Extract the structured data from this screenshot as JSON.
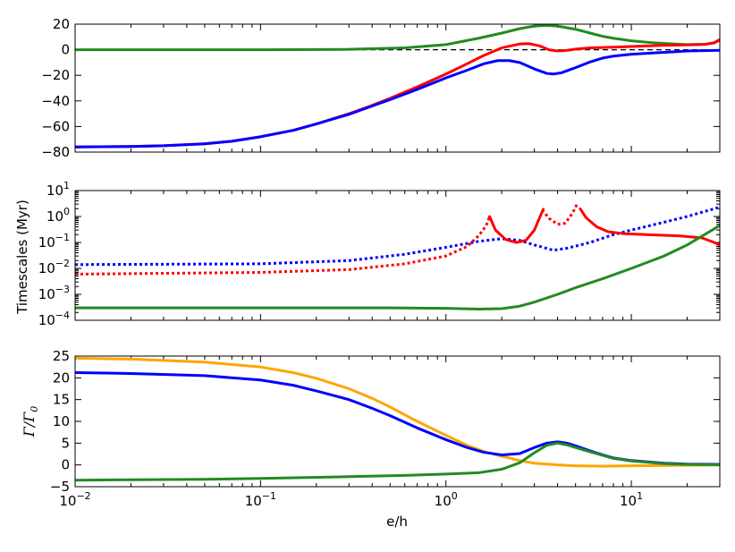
{
  "chart_data": [
    {
      "type": "line",
      "title": "",
      "xlabel": "",
      "ylabel": "",
      "xscale": "log",
      "xlim": [
        0.01,
        30
      ],
      "ylim": [
        -80,
        20
      ],
      "yticks": [
        20,
        0,
        -20,
        -40,
        -60,
        -80
      ],
      "ytick_labels": [
        "20",
        "0",
        "−20",
        "−40",
        "−60",
        "−80"
      ],
      "grid": false,
      "hline": {
        "y": 0,
        "style": "dashed",
        "color": "#000000"
      },
      "series": [
        {
          "color": "#228b22",
          "style": "solid",
          "points": [
            [
              0.01,
              0
            ],
            [
              0.1,
              0
            ],
            [
              0.3,
              0.3
            ],
            [
              0.6,
              1.5
            ],
            [
              1.0,
              4
            ],
            [
              1.5,
              9
            ],
            [
              2.0,
              13
            ],
            [
              2.5,
              16.5
            ],
            [
              3.0,
              18.5
            ],
            [
              3.5,
              19
            ],
            [
              4.0,
              18.5
            ],
            [
              5.0,
              16
            ],
            [
              6.0,
              13
            ],
            [
              7.0,
              10.5
            ],
            [
              8.0,
              9
            ],
            [
              10.0,
              7
            ],
            [
              13.0,
              5.5
            ],
            [
              17.0,
              4.5
            ],
            [
              20.0,
              4
            ],
            [
              25.0,
              4.3
            ],
            [
              28.0,
              5.3
            ],
            [
              30.0,
              7.5
            ]
          ]
        },
        {
          "color": "#ff0000",
          "style": "solid",
          "points": [
            [
              0.01,
              -76
            ],
            [
              0.02,
              -75.6
            ],
            [
              0.03,
              -75
            ],
            [
              0.05,
              -73.5
            ],
            [
              0.07,
              -71.5
            ],
            [
              0.1,
              -68
            ],
            [
              0.15,
              -63
            ],
            [
              0.2,
              -58
            ],
            [
              0.3,
              -50
            ],
            [
              0.4,
              -43.5
            ],
            [
              0.5,
              -38
            ],
            [
              0.7,
              -29
            ],
            [
              1.0,
              -19
            ],
            [
              1.3,
              -11
            ],
            [
              1.6,
              -4.5
            ],
            [
              2.0,
              1.5
            ],
            [
              2.5,
              4.5
            ],
            [
              2.8,
              4.8
            ],
            [
              3.2,
              3
            ],
            [
              3.6,
              0
            ],
            [
              4.0,
              -1
            ],
            [
              4.5,
              -0.5
            ],
            [
              5.0,
              0.5
            ],
            [
              6.0,
              1.5
            ],
            [
              8.0,
              2
            ],
            [
              10.0,
              2.5
            ],
            [
              15.0,
              3.5
            ],
            [
              20.0,
              3.8
            ],
            [
              25.0,
              4.2
            ],
            [
              28.0,
              5.5
            ],
            [
              30.0,
              8
            ]
          ]
        },
        {
          "color": "#0000ff",
          "style": "solid",
          "points": [
            [
              0.01,
              -76
            ],
            [
              0.02,
              -75.6
            ],
            [
              0.03,
              -75
            ],
            [
              0.05,
              -73.5
            ],
            [
              0.07,
              -71.5
            ],
            [
              0.1,
              -68
            ],
            [
              0.15,
              -63
            ],
            [
              0.2,
              -58
            ],
            [
              0.3,
              -50.5
            ],
            [
              0.4,
              -44
            ],
            [
              0.5,
              -39
            ],
            [
              0.7,
              -31
            ],
            [
              1.0,
              -22
            ],
            [
              1.3,
              -16
            ],
            [
              1.6,
              -11
            ],
            [
              1.9,
              -8.5
            ],
            [
              2.2,
              -8.5
            ],
            [
              2.5,
              -10
            ],
            [
              3.0,
              -15
            ],
            [
              3.5,
              -18.5
            ],
            [
              3.8,
              -19
            ],
            [
              4.2,
              -18
            ],
            [
              5.0,
              -14
            ],
            [
              6.0,
              -9.5
            ],
            [
              7.0,
              -6.5
            ],
            [
              8.0,
              -5
            ],
            [
              10.0,
              -3.5
            ],
            [
              15.0,
              -2
            ],
            [
              20.0,
              -1
            ],
            [
              30.0,
              -0.5
            ]
          ]
        }
      ]
    },
    {
      "type": "line",
      "title": "",
      "xlabel": "",
      "ylabel": "Timescales (Myr)",
      "xscale": "log",
      "yscale": "log",
      "xlim": [
        0.01,
        30
      ],
      "ylim": [
        0.0001,
        10
      ],
      "ytick_bases": [
        "10",
        "10",
        "10",
        "10",
        "10",
        "10"
      ],
      "ytick_exps": [
        "1",
        "0",
        "−1",
        "−2",
        "−3",
        "−4"
      ],
      "ytick_values": [
        10,
        1,
        0.1,
        0.01,
        0.001,
        0.0001
      ],
      "grid": false,
      "series": [
        {
          "color": "#0000ff",
          "style": "dotted",
          "points": [
            [
              0.01,
              0.014
            ],
            [
              0.1,
              0.015
            ],
            [
              0.3,
              0.02
            ],
            [
              0.6,
              0.035
            ],
            [
              1.0,
              0.065
            ],
            [
              1.5,
              0.11
            ],
            [
              2.0,
              0.14
            ],
            [
              2.5,
              0.12
            ],
            [
              3.0,
              0.08
            ],
            [
              3.8,
              0.05
            ],
            [
              4.5,
              0.06
            ],
            [
              6.0,
              0.1
            ],
            [
              8.0,
              0.2
            ],
            [
              10.0,
              0.3
            ],
            [
              15.0,
              0.6
            ],
            [
              20.0,
              1.0
            ],
            [
              30.0,
              2.3
            ]
          ]
        },
        {
          "color": "#ff0000",
          "style": "dotted",
          "points": [
            [
              0.01,
              0.006
            ],
            [
              0.1,
              0.007
            ],
            [
              0.3,
              0.009
            ],
            [
              0.6,
              0.015
            ],
            [
              1.0,
              0.03
            ],
            [
              1.3,
              0.07
            ],
            [
              1.5,
              0.18
            ],
            [
              1.65,
              0.45
            ],
            [
              1.72,
              1.0
            ]
          ]
        },
        {
          "color": "#ff0000",
          "style": "dotted",
          "points": [
            [
              3.3,
              1.8
            ],
            [
              3.6,
              0.85
            ],
            [
              4.0,
              0.5
            ],
            [
              4.4,
              0.55
            ],
            [
              4.8,
              1.3
            ],
            [
              5.1,
              3.0
            ]
          ]
        },
        {
          "color": "#ff0000",
          "style": "solid",
          "points": [
            [
              1.72,
              1.0
            ],
            [
              1.85,
              0.3
            ],
            [
              2.1,
              0.13
            ],
            [
              2.4,
              0.1
            ],
            [
              2.7,
              0.12
            ],
            [
              3.0,
              0.3
            ],
            [
              3.2,
              0.9
            ],
            [
              3.35,
              1.9
            ]
          ]
        },
        {
          "color": "#ff0000",
          "style": "solid",
          "points": [
            [
              5.3,
              2.0
            ],
            [
              5.7,
              0.9
            ],
            [
              6.5,
              0.4
            ],
            [
              7.5,
              0.26
            ],
            [
              9.0,
              0.22
            ],
            [
              12.0,
              0.2
            ],
            [
              18.0,
              0.18
            ],
            [
              24.0,
              0.15
            ],
            [
              28.0,
              0.1
            ],
            [
              30.0,
              0.08
            ]
          ]
        },
        {
          "color": "#228b22",
          "style": "solid",
          "points": [
            [
              0.01,
              0.0003
            ],
            [
              0.1,
              0.0003
            ],
            [
              0.5,
              0.0003
            ],
            [
              1.0,
              0.00029
            ],
            [
              1.5,
              0.00027
            ],
            [
              2.0,
              0.00028
            ],
            [
              2.5,
              0.00035
            ],
            [
              3.0,
              0.0005
            ],
            [
              4.0,
              0.001
            ],
            [
              5.0,
              0.0018
            ],
            [
              7.0,
              0.004
            ],
            [
              10.0,
              0.01
            ],
            [
              15.0,
              0.03
            ],
            [
              20.0,
              0.08
            ],
            [
              30.0,
              0.45
            ]
          ]
        }
      ]
    },
    {
      "type": "line",
      "title": "",
      "xlabel": "e/h",
      "ylabel": "Γ/Γ",
      "ylabel_sub": "0",
      "xscale": "log",
      "xlim": [
        0.01,
        30
      ],
      "ylim": [
        -5,
        25
      ],
      "yticks": [
        25,
        20,
        15,
        10,
        5,
        0,
        -5
      ],
      "ytick_labels": [
        "25",
        "20",
        "15",
        "10",
        "5",
        "0",
        "−5"
      ],
      "xtick_values": [
        0.01,
        0.1,
        1,
        10
      ],
      "xtick_bases": [
        "10",
        "10",
        "10",
        "10"
      ],
      "xtick_exps": [
        "−2",
        "−1",
        "0",
        "1"
      ],
      "grid": false,
      "series": [
        {
          "color": "#ffa500",
          "style": "solid",
          "points": [
            [
              0.01,
              24.5
            ],
            [
              0.02,
              24.3
            ],
            [
              0.05,
              23.6
            ],
            [
              0.1,
              22.5
            ],
            [
              0.15,
              21.2
            ],
            [
              0.2,
              19.9
            ],
            [
              0.3,
              17.5
            ],
            [
              0.4,
              15.3
            ],
            [
              0.5,
              13.3
            ],
            [
              0.7,
              10
            ],
            [
              1.0,
              6.8
            ],
            [
              1.3,
              4.5
            ],
            [
              1.6,
              3.1
            ],
            [
              2.0,
              2
            ],
            [
              2.5,
              1
            ],
            [
              3.0,
              0.4
            ],
            [
              4.0,
              0
            ],
            [
              5.0,
              -0.2
            ],
            [
              7.0,
              -0.3
            ],
            [
              10.0,
              -0.2
            ],
            [
              30.0,
              0
            ]
          ]
        },
        {
          "color": "#0000ff",
          "style": "solid",
          "points": [
            [
              0.01,
              21.2
            ],
            [
              0.02,
              21
            ],
            [
              0.05,
              20.5
            ],
            [
              0.1,
              19.5
            ],
            [
              0.15,
              18.3
            ],
            [
              0.2,
              17
            ],
            [
              0.3,
              15
            ],
            [
              0.4,
              13
            ],
            [
              0.5,
              11.3
            ],
            [
              0.7,
              8.5
            ],
            [
              1.0,
              5.8
            ],
            [
              1.3,
              4
            ],
            [
              1.6,
              2.9
            ],
            [
              2.0,
              2.3
            ],
            [
              2.5,
              2.6
            ],
            [
              3.0,
              4
            ],
            [
              3.5,
              5
            ],
            [
              4.0,
              5.3
            ],
            [
              4.5,
              5
            ],
            [
              5.0,
              4.4
            ],
            [
              6.0,
              3.2
            ],
            [
              7.0,
              2.3
            ],
            [
              8.0,
              1.6
            ],
            [
              10.0,
              1
            ],
            [
              15.0,
              0.4
            ],
            [
              20.0,
              0.2
            ],
            [
              30.0,
              0.1
            ]
          ]
        },
        {
          "color": "#228b22",
          "style": "solid",
          "points": [
            [
              0.01,
              -3.5
            ],
            [
              0.05,
              -3.3
            ],
            [
              0.1,
              -3.1
            ],
            [
              0.3,
              -2.7
            ],
            [
              0.6,
              -2.4
            ],
            [
              1.0,
              -2.1
            ],
            [
              1.5,
              -1.8
            ],
            [
              2.0,
              -1
            ],
            [
              2.5,
              0.5
            ],
            [
              3.0,
              2.8
            ],
            [
              3.5,
              4.5
            ],
            [
              4.0,
              5
            ],
            [
              4.5,
              4.6
            ],
            [
              5.0,
              4
            ],
            [
              6.0,
              3
            ],
            [
              7.0,
              2.2
            ],
            [
              8.0,
              1.5
            ],
            [
              10.0,
              0.9
            ],
            [
              15.0,
              0.3
            ],
            [
              20.0,
              0.1
            ],
            [
              30.0,
              0
            ]
          ]
        }
      ]
    }
  ]
}
